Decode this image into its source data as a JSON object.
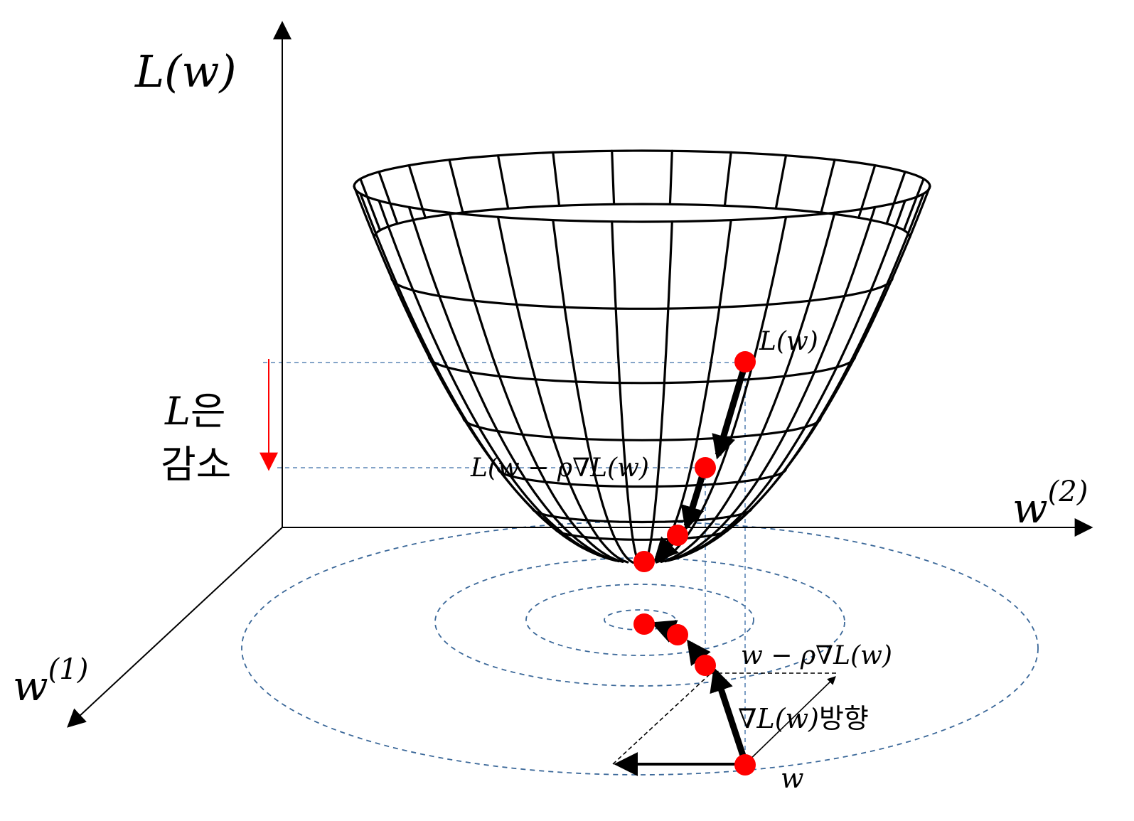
{
  "axes": {
    "y_label": "L(w)",
    "x2_label_base": "w",
    "x2_label_sup": "(2)",
    "x1_label_base": "w",
    "x1_label_sup": "(1)"
  },
  "annotations": {
    "decrease_line1_math": "L",
    "decrease_line1_kor": "은",
    "decrease_line2_kor": "감소",
    "surface_point_label": "L(w)",
    "surface_next_label": "L(w − ρ∇L(w)",
    "plane_next_label": "w − ρ∇L(w)",
    "gradient_label_math": "∇L(w)",
    "gradient_label_kor": "방향",
    "plane_point_label": "w"
  },
  "colors": {
    "point": "#ff0000",
    "decrease_arrow": "#ff0000",
    "guide_lines": "#5b86b5",
    "contours": "#3b6899"
  }
}
